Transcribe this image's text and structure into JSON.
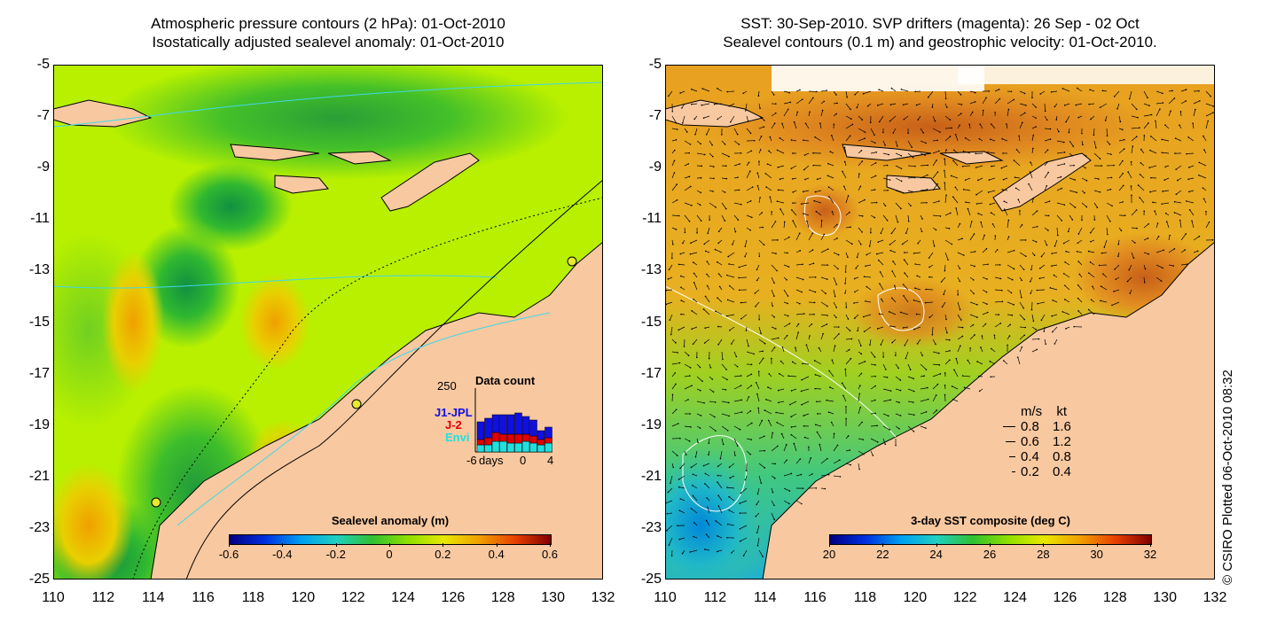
{
  "left_panel": {
    "title_line1": "Atmospheric pressure contours (2 hPa): 01-Oct-2010",
    "title_line2": "Isostatically adjusted sealevel anomaly: 01-Oct-2010",
    "colorbar": {
      "label": "Sealevel anomaly (m)",
      "ticks": [
        "-0.6",
        "-0.4",
        "-0.2",
        "0",
        "0.2",
        "0.4",
        "0.6"
      ]
    },
    "inset": {
      "title": "Data count",
      "y_max_label": "250",
      "legend": [
        "J1-JPL",
        "J-2",
        "Envi"
      ],
      "legend_colors": [
        "#1010e0",
        "#e00000",
        "#20e0e0"
      ],
      "x_labels": [
        "-6",
        "days",
        "0",
        "4"
      ]
    }
  },
  "right_panel": {
    "title_line1": "SST: 30-Sep-2010. SVP drifters (magenta): 26 Sep - 02 Oct",
    "title_line2": "Sealevel contours (0.1 m) and geostrophic velocity: 01-Oct-2010.",
    "colorbar": {
      "label": "3-day SST composite (deg C)",
      "ticks": [
        "20",
        "22",
        "24",
        "26",
        "28",
        "30",
        "32"
      ]
    },
    "velocity_legend": {
      "header_ms": "m/s",
      "header_kt": "kt",
      "rows": [
        {
          "ms": "0.8",
          "kt": "1.6"
        },
        {
          "ms": "0.6",
          "kt": "1.2"
        },
        {
          "ms": "0.4",
          "kt": "0.8"
        },
        {
          "ms": "0.2",
          "kt": "0.4"
        }
      ]
    }
  },
  "axes": {
    "lat_labels": [
      "-5",
      "-7",
      "-9",
      "-11",
      "-13",
      "-15",
      "-17",
      "-19",
      "-21",
      "-23",
      "-25"
    ],
    "lon_labels": [
      "110",
      "112",
      "114",
      "116",
      "118",
      "120",
      "122",
      "124",
      "126",
      "128",
      "130",
      "132"
    ]
  },
  "credit": "© CSIRO Plotted 06-Oct-2010 08:32",
  "colors": {
    "land": "#f8c8a0",
    "ocean_mid": "#b8f000",
    "anomaly_green": "#30c030",
    "anomaly_orange": "#f0a000",
    "sst_orange": "#f0a020",
    "sst_cool": "#30c8b0",
    "contour_cyan": "#40d8e8"
  }
}
